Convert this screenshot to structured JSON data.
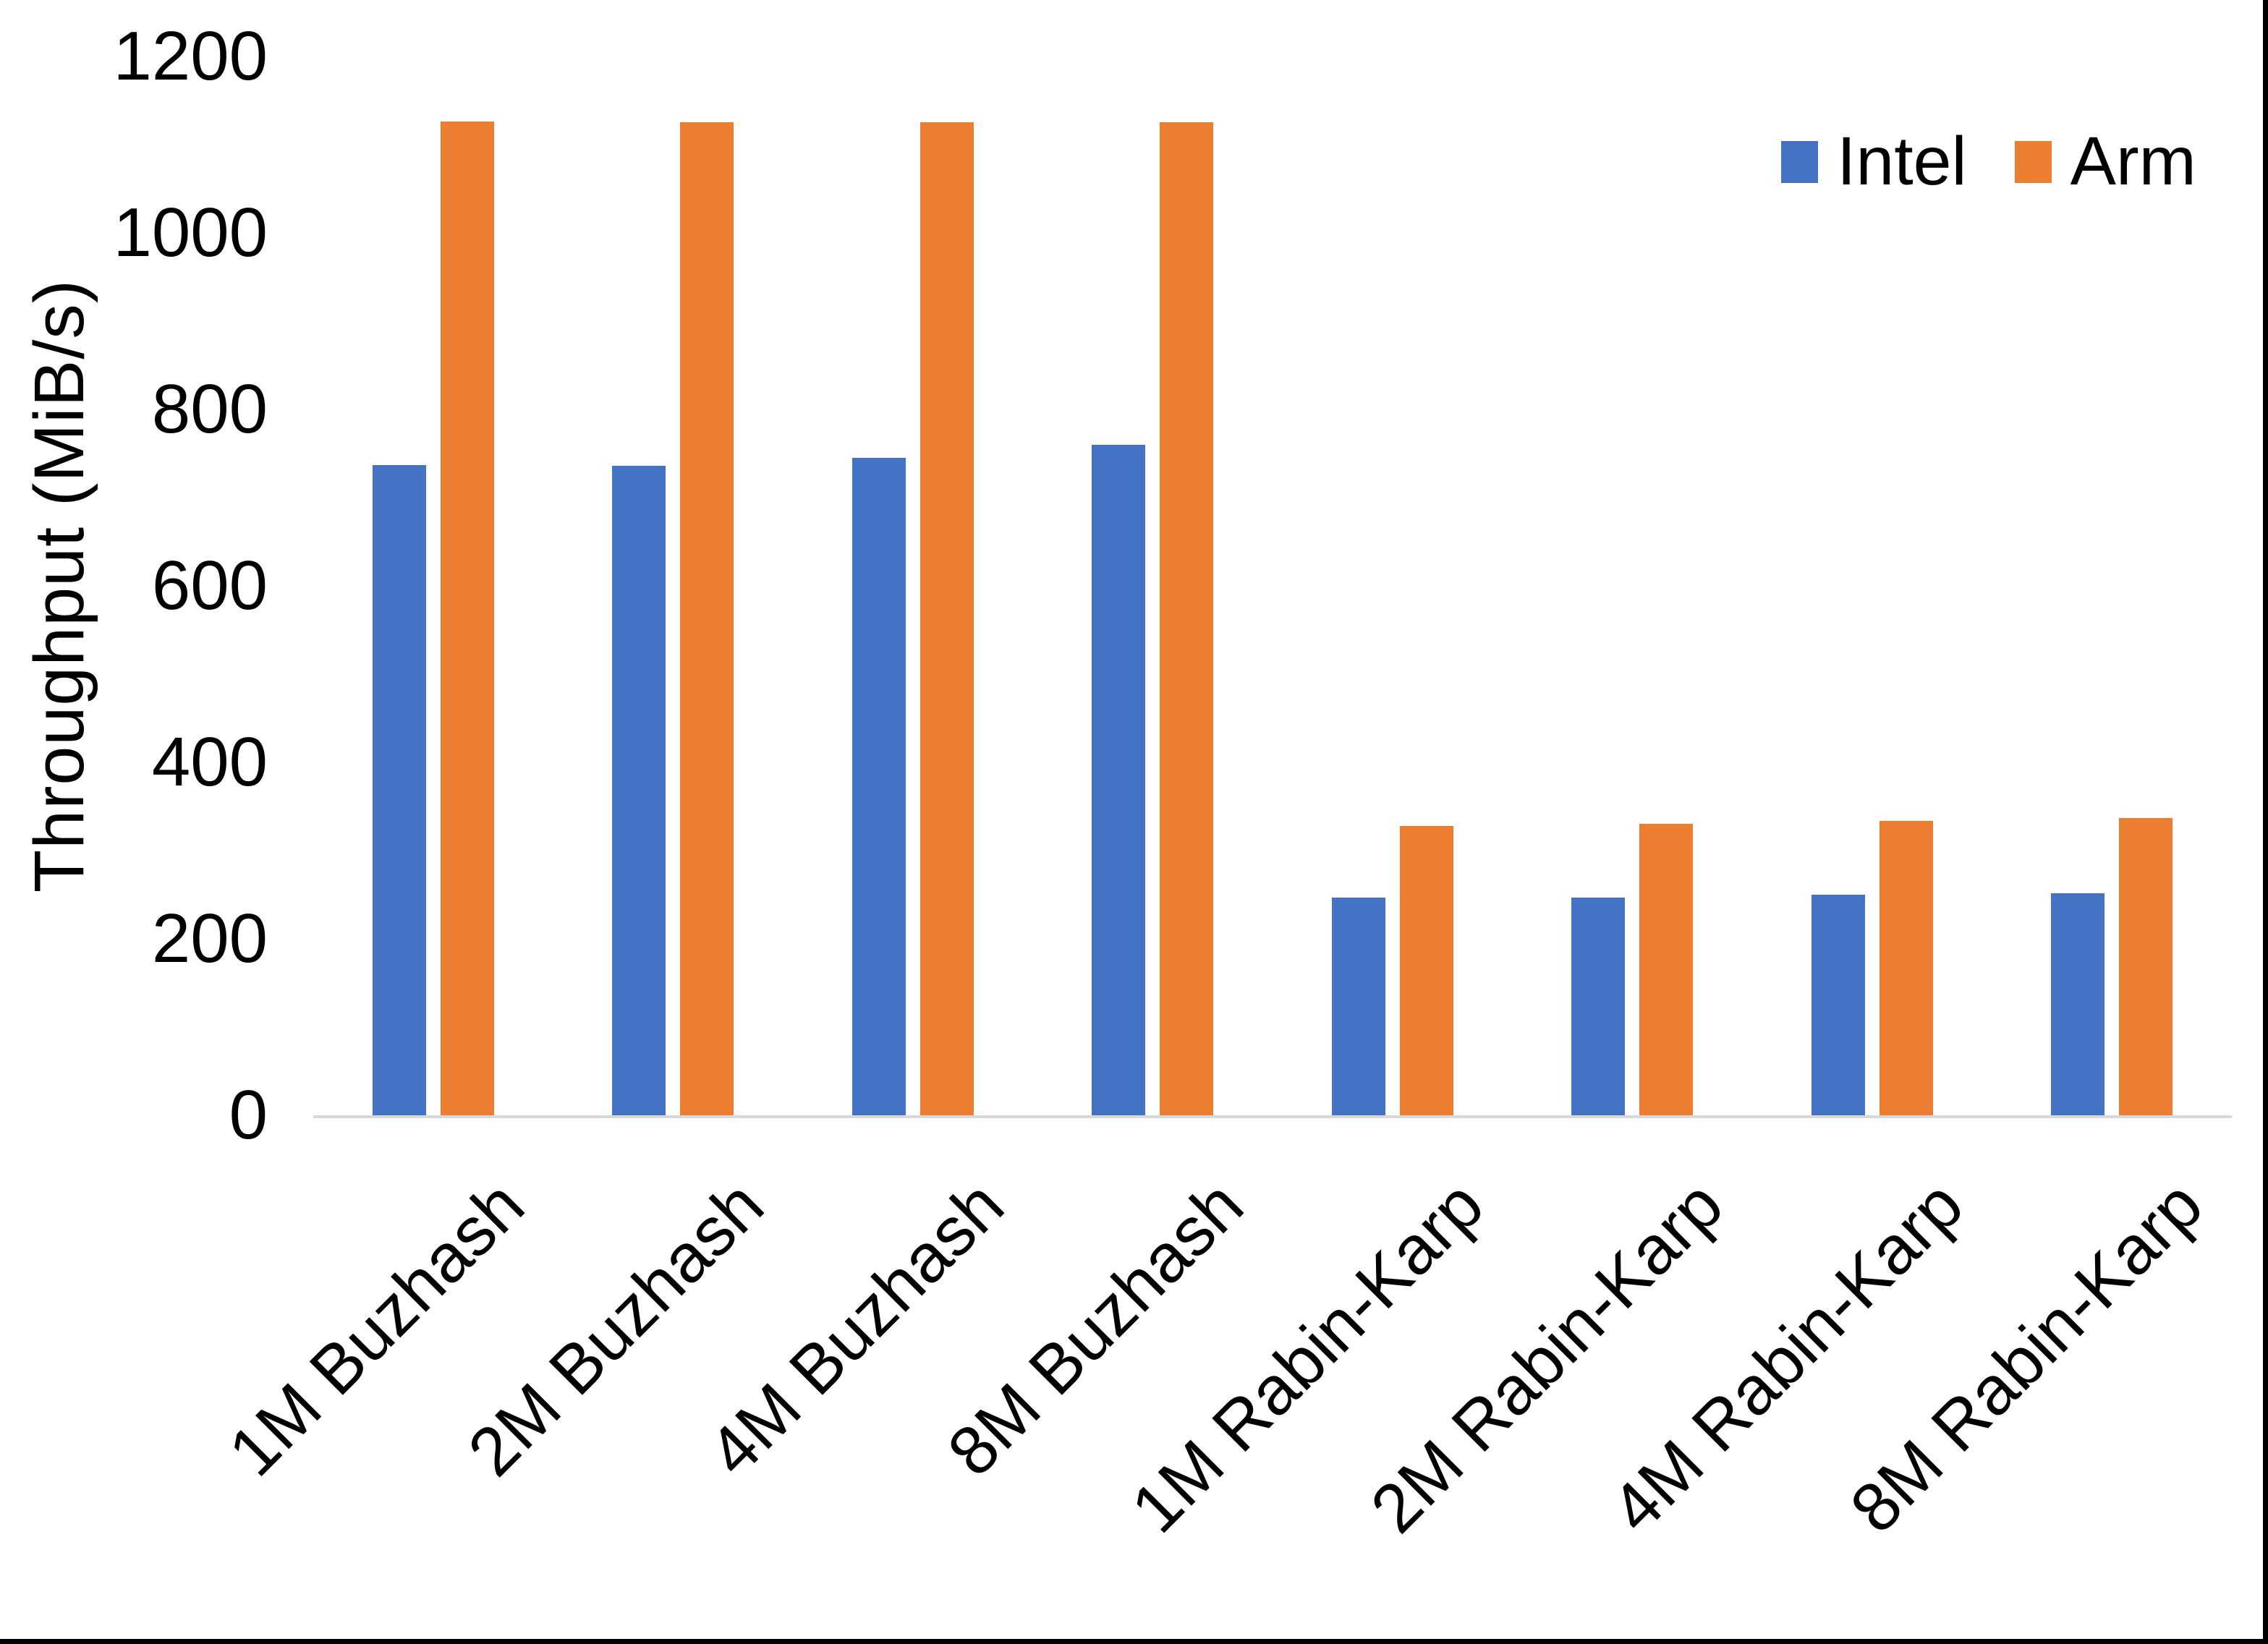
{
  "chart_data": {
    "type": "bar",
    "title": "",
    "xlabel": "",
    "ylabel": "Throughput (MiB/s)",
    "ylim": [
      0,
      1200
    ],
    "yticks": [
      0,
      200,
      400,
      600,
      800,
      1000,
      1200
    ],
    "grid": false,
    "legend_position": "top-right",
    "categories": [
      "1M Buzhash",
      "2M Buzhash",
      "4M Buzhash",
      "8M Buzhash",
      "1M Rabin-Karp",
      "2M Rabin-Karp",
      "4M Rabin-Karp",
      "8M Rabin-Karp"
    ],
    "series": [
      {
        "name": "Intel",
        "color": "#4472C4",
        "values": [
          737,
          736,
          745,
          760,
          247,
          247,
          250,
          252
        ]
      },
      {
        "name": "Arm",
        "color": "#ED7D31",
        "values": [
          1126,
          1125,
          1125,
          1125,
          328,
          330,
          334,
          337
        ]
      }
    ]
  },
  "colors": {
    "background": "#FFFFFF",
    "axis_line": "#D9D9D9",
    "text": "#000000",
    "frame_border": "#000000"
  }
}
